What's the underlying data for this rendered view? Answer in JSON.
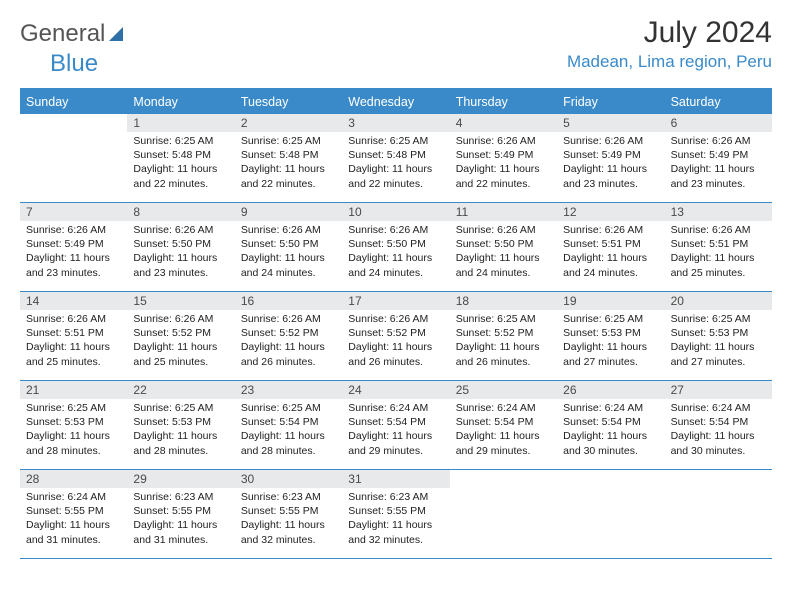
{
  "logo": {
    "part1": "General",
    "part2": "Blue"
  },
  "title": "July 2024",
  "location": "Madean, Lima region, Peru",
  "colors": {
    "accent": "#3a8ac9",
    "daynum_bg": "#e8e9ea",
    "text": "#222222"
  },
  "weekdays": [
    "Sunday",
    "Monday",
    "Tuesday",
    "Wednesday",
    "Thursday",
    "Friday",
    "Saturday"
  ],
  "weeks": [
    [
      null,
      {
        "n": "1",
        "sr": "Sunrise: 6:25 AM",
        "ss": "Sunset: 5:48 PM",
        "dl1": "Daylight: 11 hours",
        "dl2": "and 22 minutes."
      },
      {
        "n": "2",
        "sr": "Sunrise: 6:25 AM",
        "ss": "Sunset: 5:48 PM",
        "dl1": "Daylight: 11 hours",
        "dl2": "and 22 minutes."
      },
      {
        "n": "3",
        "sr": "Sunrise: 6:25 AM",
        "ss": "Sunset: 5:48 PM",
        "dl1": "Daylight: 11 hours",
        "dl2": "and 22 minutes."
      },
      {
        "n": "4",
        "sr": "Sunrise: 6:26 AM",
        "ss": "Sunset: 5:49 PM",
        "dl1": "Daylight: 11 hours",
        "dl2": "and 22 minutes."
      },
      {
        "n": "5",
        "sr": "Sunrise: 6:26 AM",
        "ss": "Sunset: 5:49 PM",
        "dl1": "Daylight: 11 hours",
        "dl2": "and 23 minutes."
      },
      {
        "n": "6",
        "sr": "Sunrise: 6:26 AM",
        "ss": "Sunset: 5:49 PM",
        "dl1": "Daylight: 11 hours",
        "dl2": "and 23 minutes."
      }
    ],
    [
      {
        "n": "7",
        "sr": "Sunrise: 6:26 AM",
        "ss": "Sunset: 5:49 PM",
        "dl1": "Daylight: 11 hours",
        "dl2": "and 23 minutes."
      },
      {
        "n": "8",
        "sr": "Sunrise: 6:26 AM",
        "ss": "Sunset: 5:50 PM",
        "dl1": "Daylight: 11 hours",
        "dl2": "and 23 minutes."
      },
      {
        "n": "9",
        "sr": "Sunrise: 6:26 AM",
        "ss": "Sunset: 5:50 PM",
        "dl1": "Daylight: 11 hours",
        "dl2": "and 24 minutes."
      },
      {
        "n": "10",
        "sr": "Sunrise: 6:26 AM",
        "ss": "Sunset: 5:50 PM",
        "dl1": "Daylight: 11 hours",
        "dl2": "and 24 minutes."
      },
      {
        "n": "11",
        "sr": "Sunrise: 6:26 AM",
        "ss": "Sunset: 5:50 PM",
        "dl1": "Daylight: 11 hours",
        "dl2": "and 24 minutes."
      },
      {
        "n": "12",
        "sr": "Sunrise: 6:26 AM",
        "ss": "Sunset: 5:51 PM",
        "dl1": "Daylight: 11 hours",
        "dl2": "and 24 minutes."
      },
      {
        "n": "13",
        "sr": "Sunrise: 6:26 AM",
        "ss": "Sunset: 5:51 PM",
        "dl1": "Daylight: 11 hours",
        "dl2": "and 25 minutes."
      }
    ],
    [
      {
        "n": "14",
        "sr": "Sunrise: 6:26 AM",
        "ss": "Sunset: 5:51 PM",
        "dl1": "Daylight: 11 hours",
        "dl2": "and 25 minutes."
      },
      {
        "n": "15",
        "sr": "Sunrise: 6:26 AM",
        "ss": "Sunset: 5:52 PM",
        "dl1": "Daylight: 11 hours",
        "dl2": "and 25 minutes."
      },
      {
        "n": "16",
        "sr": "Sunrise: 6:26 AM",
        "ss": "Sunset: 5:52 PM",
        "dl1": "Daylight: 11 hours",
        "dl2": "and 26 minutes."
      },
      {
        "n": "17",
        "sr": "Sunrise: 6:26 AM",
        "ss": "Sunset: 5:52 PM",
        "dl1": "Daylight: 11 hours",
        "dl2": "and 26 minutes."
      },
      {
        "n": "18",
        "sr": "Sunrise: 6:25 AM",
        "ss": "Sunset: 5:52 PM",
        "dl1": "Daylight: 11 hours",
        "dl2": "and 26 minutes."
      },
      {
        "n": "19",
        "sr": "Sunrise: 6:25 AM",
        "ss": "Sunset: 5:53 PM",
        "dl1": "Daylight: 11 hours",
        "dl2": "and 27 minutes."
      },
      {
        "n": "20",
        "sr": "Sunrise: 6:25 AM",
        "ss": "Sunset: 5:53 PM",
        "dl1": "Daylight: 11 hours",
        "dl2": "and 27 minutes."
      }
    ],
    [
      {
        "n": "21",
        "sr": "Sunrise: 6:25 AM",
        "ss": "Sunset: 5:53 PM",
        "dl1": "Daylight: 11 hours",
        "dl2": "and 28 minutes."
      },
      {
        "n": "22",
        "sr": "Sunrise: 6:25 AM",
        "ss": "Sunset: 5:53 PM",
        "dl1": "Daylight: 11 hours",
        "dl2": "and 28 minutes."
      },
      {
        "n": "23",
        "sr": "Sunrise: 6:25 AM",
        "ss": "Sunset: 5:54 PM",
        "dl1": "Daylight: 11 hours",
        "dl2": "and 28 minutes."
      },
      {
        "n": "24",
        "sr": "Sunrise: 6:24 AM",
        "ss": "Sunset: 5:54 PM",
        "dl1": "Daylight: 11 hours",
        "dl2": "and 29 minutes."
      },
      {
        "n": "25",
        "sr": "Sunrise: 6:24 AM",
        "ss": "Sunset: 5:54 PM",
        "dl1": "Daylight: 11 hours",
        "dl2": "and 29 minutes."
      },
      {
        "n": "26",
        "sr": "Sunrise: 6:24 AM",
        "ss": "Sunset: 5:54 PM",
        "dl1": "Daylight: 11 hours",
        "dl2": "and 30 minutes."
      },
      {
        "n": "27",
        "sr": "Sunrise: 6:24 AM",
        "ss": "Sunset: 5:54 PM",
        "dl1": "Daylight: 11 hours",
        "dl2": "and 30 minutes."
      }
    ],
    [
      {
        "n": "28",
        "sr": "Sunrise: 6:24 AM",
        "ss": "Sunset: 5:55 PM",
        "dl1": "Daylight: 11 hours",
        "dl2": "and 31 minutes."
      },
      {
        "n": "29",
        "sr": "Sunrise: 6:23 AM",
        "ss": "Sunset: 5:55 PM",
        "dl1": "Daylight: 11 hours",
        "dl2": "and 31 minutes."
      },
      {
        "n": "30",
        "sr": "Sunrise: 6:23 AM",
        "ss": "Sunset: 5:55 PM",
        "dl1": "Daylight: 11 hours",
        "dl2": "and 32 minutes."
      },
      {
        "n": "31",
        "sr": "Sunrise: 6:23 AM",
        "ss": "Sunset: 5:55 PM",
        "dl1": "Daylight: 11 hours",
        "dl2": "and 32 minutes."
      },
      null,
      null,
      null
    ]
  ]
}
